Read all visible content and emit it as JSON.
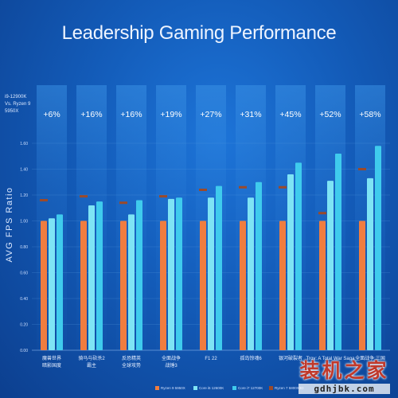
{
  "title": "Leadership Gaming Performance",
  "comparison_label": [
    "i9-12900K",
    "Vs. Ryzen 9",
    "5950X"
  ],
  "watermark": {
    "cn": "装机之家",
    "url": "gdhjbk.com"
  },
  "colors": {
    "ryzen": "#f07d3f",
    "i5": "#7ee4f5",
    "i7": "#3fcbed",
    "i9": "#1aa9ef",
    "marker": "#9b4a2a",
    "band_top": "#3d95e8"
  },
  "chart_data": {
    "type": "bar",
    "ylabel": "AVG FPS Ratio",
    "ylim": [
      0,
      1.6
    ],
    "yticks": [
      "0.00",
      "0.20",
      "0.40",
      "0.60",
      "0.80",
      "1.00",
      "1.20",
      "1.40",
      "1.60"
    ],
    "categories": [
      [
        "魔兽世界",
        "暗影国度"
      ],
      [
        "骑马与砍杀2",
        "霸主"
      ],
      [
        "反恐精英",
        "全球攻势"
      ],
      [
        "全面战争",
        "战锤3"
      ],
      [
        "F1 22"
      ],
      [
        "孤岛惊魂6"
      ],
      [
        "银河破裂者"
      ],
      [
        "Troy: A Total War Saga"
      ],
      [
        "全面战争:三国"
      ]
    ],
    "uplift_labels": [
      "+6%",
      "+16%",
      "+16%",
      "+19%",
      "+27%",
      "+31%",
      "+45%",
      "+52%",
      "+58%"
    ],
    "series": [
      {
        "name": "Ryzen 9 5950X",
        "values": [
          1.0,
          1.0,
          1.0,
          1.0,
          1.0,
          1.0,
          1.0,
          1.0,
          1.0
        ]
      },
      {
        "name": "Core i5 12600K",
        "values": [
          1.02,
          1.12,
          1.05,
          1.17,
          1.18,
          1.18,
          1.36,
          1.31,
          1.33
        ]
      },
      {
        "name": "Core i7 12700K",
        "values": [
          1.05,
          1.15,
          1.16,
          1.18,
          1.27,
          1.3,
          1.45,
          1.52,
          1.58
        ]
      },
      {
        "name": "Ryzen 7 5800X3D",
        "values": [
          1.16,
          1.19,
          1.14,
          1.19,
          1.24,
          1.26,
          1.26,
          1.06,
          1.4
        ]
      }
    ],
    "legend": [
      "Ryzen 9 5950X",
      "Core i5 12600K",
      "Core i7 12700K",
      "Ryzen 7 5800X3D"
    ]
  }
}
